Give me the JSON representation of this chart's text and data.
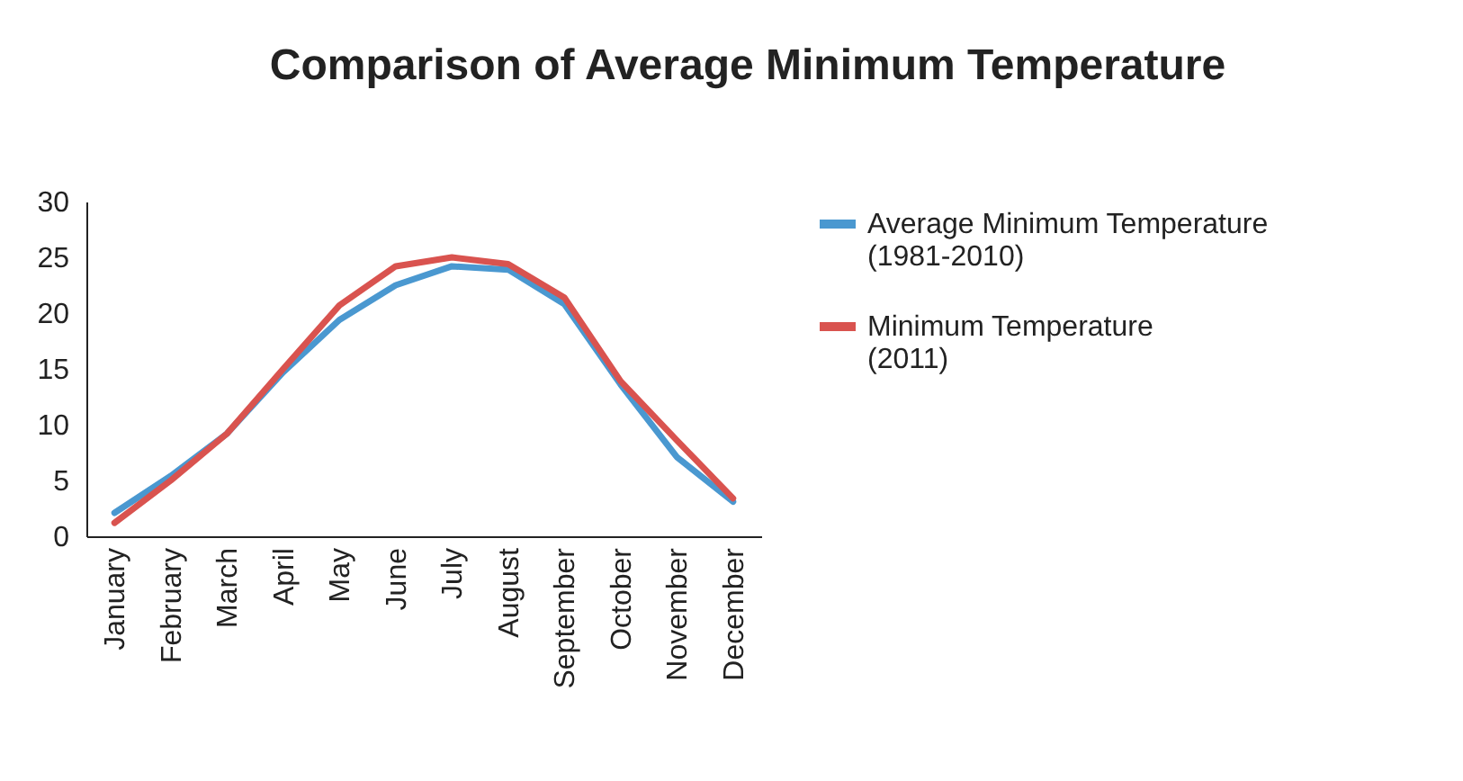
{
  "chart_data": {
    "type": "line",
    "title": "Comparison of Average Minimum Temperature",
    "categories": [
      "January",
      "February",
      "March",
      "April",
      "May",
      "June",
      "July",
      "August",
      "September",
      "October",
      "November",
      "December"
    ],
    "series": [
      {
        "name": "Average Minimum Temperature (1981-2010)",
        "color": "#4a98d0",
        "values": [
          2.1,
          5.4,
          9.2,
          14.7,
          19.4,
          22.5,
          24.2,
          23.9,
          20.8,
          13.6,
          7.1,
          3.1
        ]
      },
      {
        "name": "Minimum Temperature (2011)",
        "color": "#d9534f",
        "values": [
          1.2,
          5.0,
          9.2,
          15.0,
          20.7,
          24.2,
          25.0,
          24.4,
          21.4,
          13.9,
          8.6,
          3.4
        ]
      }
    ],
    "ylim": [
      0,
      30
    ],
    "yticks": [
      0,
      5,
      10,
      15,
      20,
      25,
      30
    ],
    "grid": false,
    "legend": "right",
    "marker": "none",
    "line_style": "solid"
  }
}
